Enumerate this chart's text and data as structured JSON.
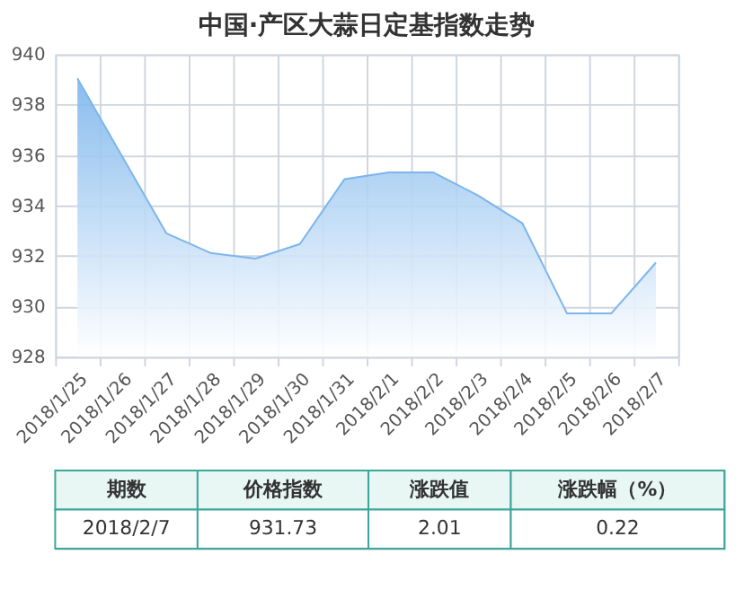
{
  "chart_data": {
    "type": "area",
    "title": "中国·产区大蒜日定基指数走势",
    "categories": [
      "2018/1/25",
      "2018/1/26",
      "2018/1/27",
      "2018/1/28",
      "2018/1/29",
      "2018/1/30",
      "2018/1/31",
      "2018/2/1",
      "2018/2/2",
      "2018/2/3",
      "2018/2/4",
      "2018/2/5",
      "2018/2/6",
      "2018/2/7"
    ],
    "series": [
      {
        "color": "#7cb5ec",
        "values": [
          939.04,
          935.96,
          932.89,
          932.11,
          931.89,
          932.47,
          935.04,
          935.31,
          935.31,
          934.4,
          933.29,
          929.72,
          929.72,
          931.73
        ]
      }
    ],
    "ylim": [
      928,
      940
    ],
    "yticks": [
      928,
      930,
      932,
      934,
      936,
      938,
      940
    ],
    "grid": true,
    "annotations": [
      "期数",
      "价格指数",
      "涨跌值",
      "涨跌幅（%）",
      "2018/2/7",
      "931.73",
      "2.01",
      "0.22"
    ]
  }
}
